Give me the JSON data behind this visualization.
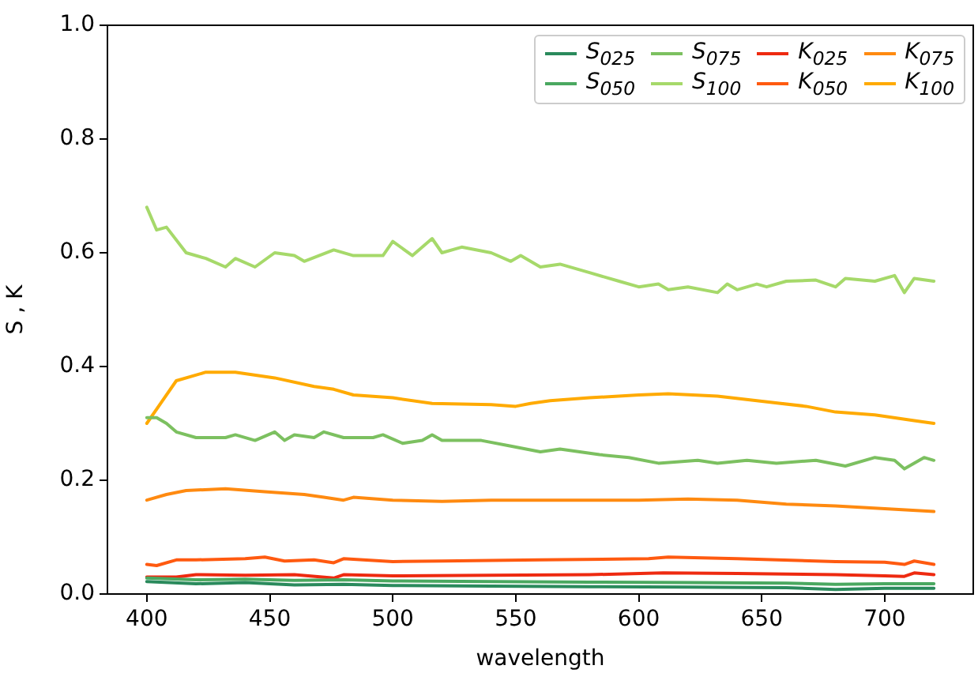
{
  "chart_data": {
    "type": "line",
    "xlabel": "wavelength",
    "ylabel": "S , K",
    "xlim": [
      384,
      736
    ],
    "ylim": [
      0,
      1
    ],
    "xticks": [
      400,
      450,
      500,
      550,
      600,
      650,
      700
    ],
    "yticks": [
      {
        "value": 0,
        "label": "0.0"
      },
      {
        "value": 0.2,
        "label": "0.2"
      },
      {
        "value": 0.4,
        "label": "0.4"
      },
      {
        "value": 0.6,
        "label": "0.6"
      },
      {
        "value": 0.8,
        "label": "0.8"
      },
      {
        "value": 1,
        "label": "1.0"
      }
    ],
    "grid": false,
    "legend": "top right",
    "marker": "none",
    "line_style": "solid",
    "series": [
      {
        "name": "S$_{025}$",
        "color": "#2a8a5c",
        "x": [
          400,
          420,
          440,
          460,
          480,
          500,
          540,
          580,
          620,
          660,
          680,
          700,
          720
        ],
        "values": [
          0.022,
          0.018,
          0.02,
          0.016,
          0.017,
          0.015,
          0.014,
          0.013,
          0.012,
          0.011,
          0.008,
          0.01,
          0.01
        ]
      },
      {
        "name": "S$_{050}$",
        "color": "#4aa860",
        "x": [
          400,
          420,
          440,
          460,
          480,
          500,
          540,
          580,
          620,
          660,
          680,
          700,
          720
        ],
        "values": [
          0.028,
          0.025,
          0.026,
          0.024,
          0.025,
          0.023,
          0.022,
          0.021,
          0.02,
          0.019,
          0.017,
          0.018,
          0.018
        ]
      },
      {
        "name": "S$_{075}$",
        "color": "#7cc060",
        "x": [
          400,
          404,
          408,
          412,
          420,
          432,
          436,
          444,
          452,
          456,
          460,
          468,
          472,
          480,
          492,
          496,
          504,
          512,
          516,
          520,
          536,
          548,
          560,
          568,
          584,
          596,
          608,
          624,
          632,
          644,
          656,
          672,
          684,
          696,
          704,
          708,
          716,
          720
        ],
        "values": [
          0.31,
          0.31,
          0.3,
          0.285,
          0.275,
          0.275,
          0.28,
          0.27,
          0.285,
          0.27,
          0.28,
          0.275,
          0.285,
          0.275,
          0.275,
          0.28,
          0.265,
          0.27,
          0.28,
          0.27,
          0.27,
          0.26,
          0.25,
          0.255,
          0.245,
          0.24,
          0.23,
          0.235,
          0.23,
          0.235,
          0.23,
          0.235,
          0.225,
          0.24,
          0.235,
          0.22,
          0.24,
          0.235
        ]
      },
      {
        "name": "S$_{100}$",
        "color": "#a6d96a",
        "x": [
          400,
          404,
          408,
          416,
          424,
          432,
          436,
          444,
          452,
          460,
          464,
          476,
          484,
          496,
          500,
          508,
          516,
          520,
          528,
          540,
          548,
          552,
          560,
          568,
          580,
          592,
          600,
          608,
          612,
          620,
          632,
          636,
          640,
          648,
          652,
          660,
          672,
          680,
          684,
          696,
          704,
          708,
          712,
          720
        ],
        "values": [
          0.68,
          0.64,
          0.645,
          0.6,
          0.59,
          0.575,
          0.59,
          0.575,
          0.6,
          0.595,
          0.585,
          0.605,
          0.595,
          0.595,
          0.62,
          0.595,
          0.625,
          0.6,
          0.61,
          0.6,
          0.585,
          0.595,
          0.575,
          0.58,
          0.565,
          0.55,
          0.54,
          0.545,
          0.535,
          0.54,
          0.53,
          0.545,
          0.535,
          0.545,
          0.54,
          0.55,
          0.552,
          0.54,
          0.555,
          0.55,
          0.56,
          0.53,
          0.555,
          0.55
        ]
      },
      {
        "name": "K$_{025}$",
        "color": "#ee2a10",
        "x": [
          400,
          412,
          420,
          440,
          460,
          476,
          480,
          500,
          540,
          580,
          610,
          640,
          680,
          700,
          708,
          712,
          720
        ],
        "values": [
          0.03,
          0.03,
          0.034,
          0.033,
          0.034,
          0.028,
          0.034,
          0.032,
          0.033,
          0.034,
          0.037,
          0.036,
          0.034,
          0.032,
          0.031,
          0.037,
          0.034
        ]
      },
      {
        "name": "K$_{050}$",
        "color": "#ff5a10",
        "x": [
          400,
          404,
          412,
          420,
          440,
          448,
          456,
          468,
          476,
          480,
          500,
          520,
          560,
          604,
          612,
          640,
          680,
          700,
          708,
          712,
          720
        ],
        "values": [
          0.052,
          0.05,
          0.06,
          0.06,
          0.062,
          0.065,
          0.058,
          0.06,
          0.055,
          0.062,
          0.057,
          0.058,
          0.06,
          0.062,
          0.065,
          0.062,
          0.057,
          0.056,
          0.052,
          0.058,
          0.052
        ]
      },
      {
        "name": "K$_{075}$",
        "color": "#ff8a10",
        "x": [
          400,
          408,
          416,
          432,
          448,
          464,
          472,
          480,
          484,
          500,
          520,
          540,
          560,
          580,
          600,
          620,
          640,
          660,
          680,
          700,
          720
        ],
        "values": [
          0.165,
          0.175,
          0.182,
          0.185,
          0.18,
          0.175,
          0.17,
          0.165,
          0.17,
          0.165,
          0.163,
          0.165,
          0.165,
          0.165,
          0.165,
          0.167,
          0.165,
          0.158,
          0.155,
          0.15,
          0.145
        ]
      },
      {
        "name": "K$_{100}$",
        "color": "#ffaa00",
        "x": [
          400,
          412,
          424,
          436,
          452,
          468,
          476,
          484,
          500,
          516,
          540,
          550,
          556,
          564,
          580,
          600,
          612,
          632,
          648,
          668,
          680,
          696,
          712,
          720
        ],
        "values": [
          0.3,
          0.375,
          0.39,
          0.39,
          0.38,
          0.365,
          0.36,
          0.35,
          0.345,
          0.335,
          0.333,
          0.33,
          0.335,
          0.34,
          0.345,
          0.35,
          0.352,
          0.348,
          0.34,
          0.33,
          0.32,
          0.315,
          0.305,
          0.3
        ]
      }
    ]
  }
}
